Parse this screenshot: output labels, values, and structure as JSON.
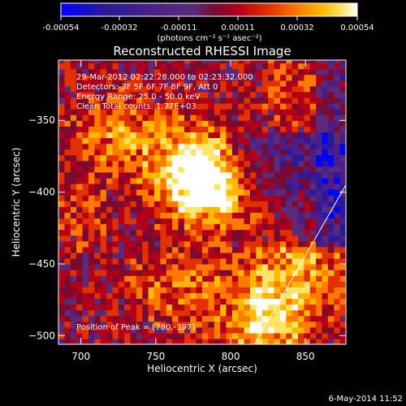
{
  "chart_data": {
    "type": "heatmap",
    "title": "Reconstructed RHESSI Image",
    "xlabel": "Heliocentric X (arcsec)",
    "ylabel": "Heliocentric Y (arcsec)",
    "xlim": [
      685,
      877
    ],
    "ylim": [
      -506,
      -308
    ],
    "xticks": [
      700,
      750,
      800,
      850
    ],
    "yticks": [
      -350,
      -400,
      -450,
      -500
    ],
    "colorbar": {
      "ticks": [
        "-0.00054",
        "-0.00032",
        "-0.00011",
        "0.00011",
        "0.00032",
        "0.00054"
      ],
      "range": [
        -0.00054,
        0.00054
      ],
      "unit_text": "(photons cm⁻² s⁻¹ asec⁻²)"
    },
    "info_lines": [
      "29-Mar-2012 02:22:28.000 to 02:23:32.000",
      "Detectors: 3F 5F 6F 7F 8F 9F, Att 0",
      "Energy Range: 25.0 - 50.0 keV",
      "Clean    Total counts: 1.77E+03"
    ],
    "peak_label": "Position of Peak = [780,-397]",
    "peak": [
      780,
      -397
    ],
    "limb_line": {
      "from": [
        816,
        -506
      ],
      "to": [
        877,
        -395
      ]
    },
    "date_stamp": "6-May-2014 11:52"
  },
  "colors": {
    "background": "#000000",
    "text": "#ffffff",
    "colormap": [
      "#0000ff",
      "#2a1a99",
      "#4b1f8a",
      "#5b2a78",
      "#7a0a30",
      "#b0001a",
      "#e33000",
      "#ff7a00",
      "#ffb800",
      "#ffe46a",
      "#ffffff"
    ]
  }
}
